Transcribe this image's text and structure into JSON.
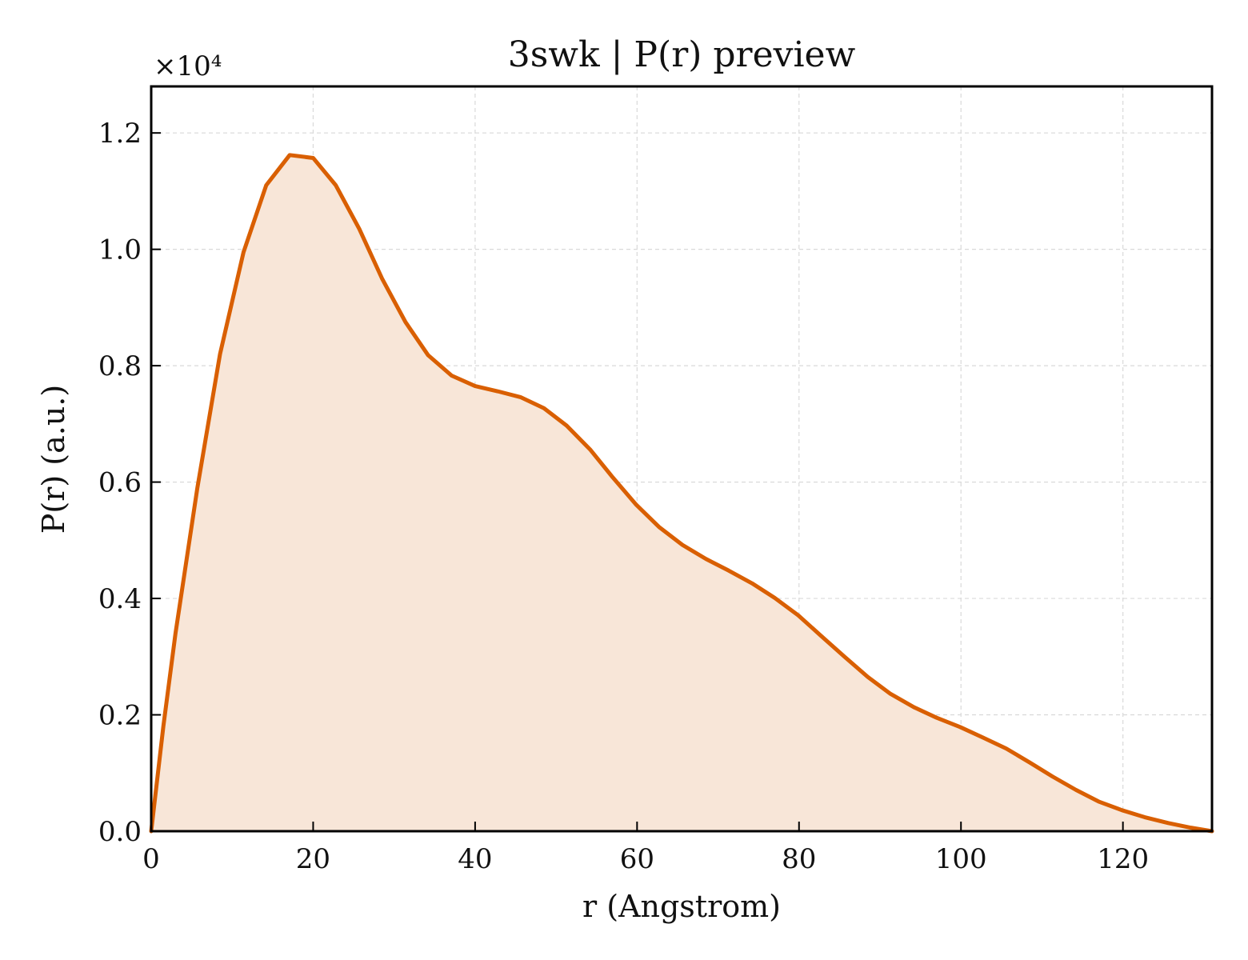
{
  "chart_data": {
    "type": "area",
    "title": "3swk | P(r) preview",
    "xlabel": "r (Angstrom)",
    "ylabel": "P(r) (a.u.)",
    "y_scale_label": "×10⁴",
    "y_scale_factor": 10000,
    "xlim": [
      0,
      131
    ],
    "ylim": [
      0,
      12800
    ],
    "x_ticks": [
      0,
      20,
      40,
      60,
      80,
      100,
      120
    ],
    "x_tick_labels": [
      "0",
      "20",
      "40",
      "60",
      "80",
      "100",
      "120"
    ],
    "y_ticks": [
      0,
      2000,
      4000,
      6000,
      8000,
      10000,
      12000
    ],
    "y_tick_labels": [
      "0.0",
      "0.2",
      "0.4",
      "0.6",
      "0.8",
      "1.0",
      "1.2"
    ],
    "grid": true,
    "colors": {
      "line": "#d95f02",
      "fill": "#f8e6d8",
      "grid": "#d9d9d9",
      "axis": "#000000"
    },
    "series": [
      {
        "x": [
          0,
          1.5,
          3,
          5.7,
          8.5,
          11.4,
          14.2,
          17.1,
          20,
          22.8,
          25.7,
          28.5,
          31.4,
          34.2,
          37.1,
          40,
          42.8,
          45.6,
          48.5,
          51.3,
          54.2,
          57,
          59.9,
          62.7,
          65.6,
          68.5,
          71.3,
          74.2,
          77,
          79.9,
          82.7,
          85.6,
          88.5,
          91.3,
          94.2,
          97,
          99.9,
          102.7,
          105.6,
          108.5,
          111.3,
          114.2,
          117,
          119.9,
          122.7,
          125.6,
          128.4,
          131
        ],
        "y": [
          0,
          1800,
          3400,
          5900,
          8200,
          9950,
          11100,
          11620,
          11570,
          11100,
          10350,
          9500,
          8750,
          8180,
          7830,
          7650,
          7560,
          7460,
          7270,
          6970,
          6560,
          6080,
          5610,
          5230,
          4920,
          4680,
          4480,
          4260,
          4010,
          3710,
          3360,
          3000,
          2650,
          2360,
          2130,
          1950,
          1790,
          1610,
          1420,
          1180,
          940,
          710,
          510,
          360,
          240,
          140,
          60,
          0
        ]
      }
    ]
  }
}
